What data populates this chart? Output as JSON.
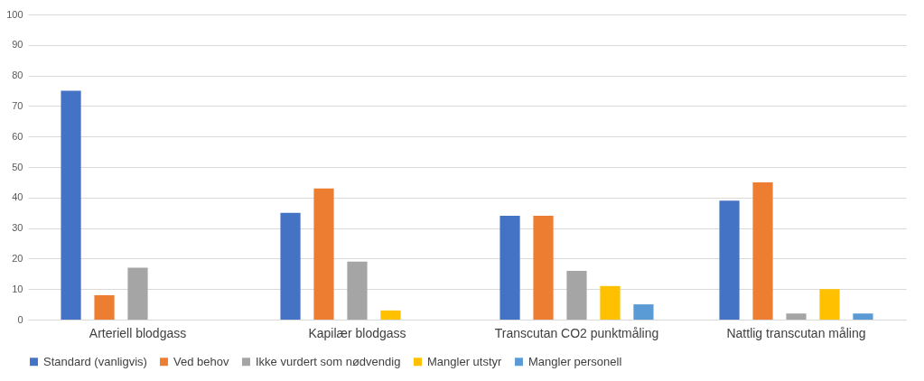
{
  "chart_data": {
    "type": "bar",
    "categories": [
      "Arteriell blodgass",
      "Kapilær blodgass",
      "Transcutan CO2 punktmåling",
      "Nattlig transcutan måling"
    ],
    "series": [
      {
        "name": "Standard (vanligvis)",
        "color": "#4472c4",
        "values": [
          75,
          35,
          34,
          39
        ]
      },
      {
        "name": "Ved behov",
        "color": "#ed7d31",
        "values": [
          8,
          43,
          34,
          45
        ]
      },
      {
        "name": "Ikke vurdert som nødvendig",
        "color": "#a5a5a5",
        "values": [
          17,
          19,
          16,
          2
        ]
      },
      {
        "name": "Mangler utstyr",
        "color": "#ffc000",
        "values": [
          0,
          3,
          11,
          10
        ]
      },
      {
        "name": "Mangler personell",
        "color": "#5b9bd5",
        "values": [
          0,
          0,
          5,
          2
        ]
      }
    ],
    "ylim": [
      0,
      100
    ],
    "yticks": [
      0,
      10,
      20,
      30,
      40,
      50,
      60,
      70,
      80,
      90,
      100
    ],
    "grid": "y",
    "legend": "bottom"
  }
}
